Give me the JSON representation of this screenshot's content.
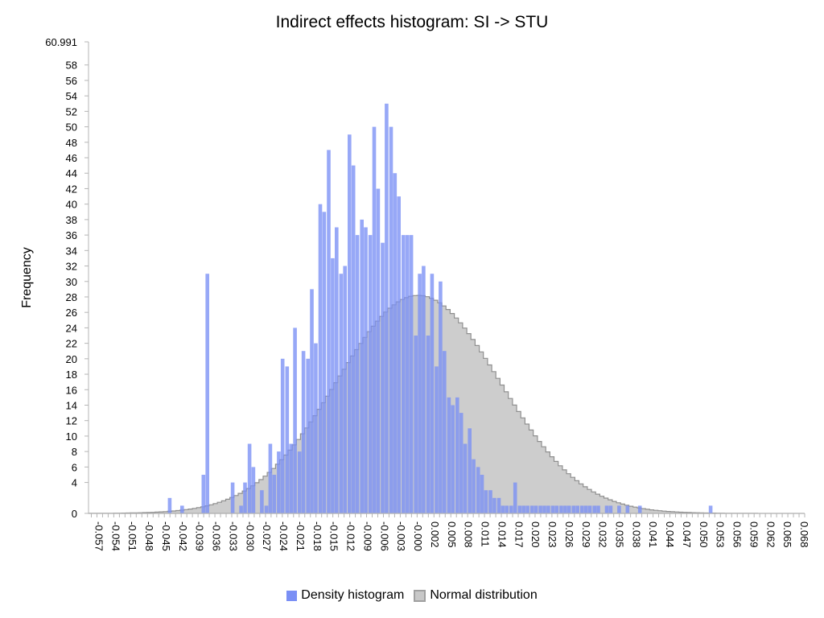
{
  "chart_data": {
    "type": "bar",
    "title": "Indirect effects histogram: SI -> STU",
    "xlabel": "",
    "ylabel": "Frequency",
    "ylim": [
      0,
      60.991
    ],
    "y_ticks": [
      "0",
      "4",
      "6",
      "8",
      "10",
      "12",
      "14",
      "16",
      "18",
      "20",
      "22",
      "24",
      "26",
      "28",
      "30",
      "32",
      "34",
      "36",
      "38",
      "40",
      "42",
      "44",
      "46",
      "48",
      "50",
      "52",
      "54",
      "56",
      "58",
      "60.991"
    ],
    "x_ticks": [
      "-0.057",
      "-0.054",
      "-0.051",
      "-0.048",
      "-0.045",
      "-0.042",
      "-0.039",
      "-0.036",
      "-0.033",
      "-0.030",
      "-0.027",
      "-0.024",
      "-0.021",
      "-0.018",
      "-0.015",
      "-0.012",
      "-0.009",
      "-0.006",
      "-0.003",
      "-0.000",
      "0.002",
      "0.005",
      "0.008",
      "0.011",
      "0.014",
      "0.017",
      "0.020",
      "0.023",
      "0.026",
      "0.029",
      "0.032",
      "0.035",
      "0.038",
      "0.041",
      "0.044",
      "0.047",
      "0.050",
      "0.053",
      "0.056",
      "0.059",
      "0.062",
      "0.065",
      "0.068"
    ],
    "x_range": [
      -0.0575,
      0.07
    ],
    "bin_width": 0.00074,
    "series": [
      {
        "name": "Density histogram",
        "color": "#7a8ff5",
        "x": [
          -0.043,
          -0.0408,
          -0.037,
          -0.0363,
          -0.0318,
          -0.0303,
          -0.0296,
          -0.0288,
          -0.0281,
          -0.0266,
          -0.0258,
          -0.0251,
          -0.0244,
          -0.0236,
          -0.0229,
          -0.0221,
          -0.0214,
          -0.0207,
          -0.0199,
          -0.0192,
          -0.0184,
          -0.0177,
          -0.017,
          -0.0162,
          -0.0155,
          -0.0147,
          -0.014,
          -0.0133,
          -0.0125,
          -0.0118,
          -0.011,
          -0.0103,
          -0.0096,
          -0.0088,
          -0.0081,
          -0.0073,
          -0.0066,
          -0.0059,
          -0.0051,
          -0.0044,
          -0.0036,
          -0.0029,
          -0.0022,
          -0.0014,
          -0.0007,
          0.0,
          0.0008,
          0.0015,
          0.0022,
          0.003,
          0.0037,
          0.0045,
          0.0052,
          0.0059,
          0.0067,
          0.0074,
          0.0082,
          0.0089,
          0.0096,
          0.0104,
          0.0111,
          0.0119,
          0.0126,
          0.0133,
          0.0141,
          0.0148,
          0.0156,
          0.0163,
          0.017,
          0.0178,
          0.0185,
          0.0193,
          0.02,
          0.0207,
          0.0215,
          0.0222,
          0.023,
          0.0237,
          0.0244,
          0.0252,
          0.0259,
          0.0267,
          0.0274,
          0.0281,
          0.0289,
          0.0296,
          0.0304,
          0.0311,
          0.0318,
          0.0326,
          0.0333,
          0.0348,
          0.0355,
          0.037,
          0.0385,
          0.0407,
          0.0533
        ],
        "values": [
          2,
          1,
          5,
          31,
          4,
          1,
          4,
          9,
          6,
          3,
          1,
          9,
          5,
          8,
          20,
          19,
          9,
          24,
          8,
          21,
          20,
          29,
          22,
          40,
          39,
          47,
          33,
          37,
          31,
          32,
          49,
          45,
          36,
          38,
          37,
          36,
          50,
          42,
          35,
          53,
          50,
          44,
          41,
          36,
          36,
          36,
          23,
          31,
          32,
          23,
          31,
          19,
          30,
          21,
          15,
          14,
          15,
          13,
          9,
          11,
          7,
          6,
          5,
          3,
          3,
          2,
          2,
          1,
          1,
          1,
          4,
          1,
          1,
          1,
          1,
          1,
          1,
          1,
          1,
          1,
          1,
          1,
          1,
          1,
          1,
          1,
          1,
          1,
          1,
          1,
          1,
          1,
          1,
          1,
          1,
          1,
          1
        ]
      },
      {
        "name": "Normal distribution",
        "color": "#c0c0c0",
        "mean": 0.0012,
        "sd": 0.0145,
        "peak": 28.2
      }
    ],
    "legend": "bottom-center",
    "grid": false
  }
}
